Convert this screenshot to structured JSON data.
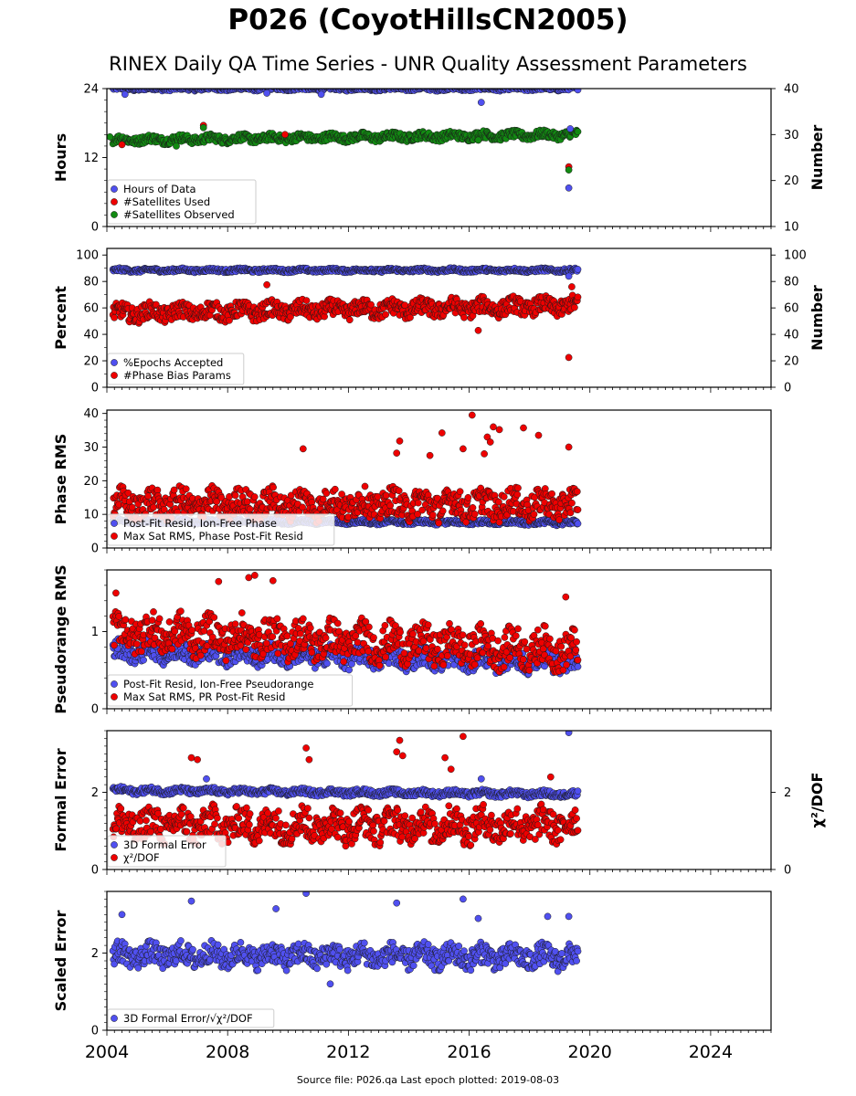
{
  "title": "P026 (CoyotHillsCN2005)",
  "subtitle": "RINEX Daily QA Time Series - UNR Quality Assessment Parameters",
  "footer": "Source file: P026.qa Last epoch plotted: 2019-08-03",
  "colors": {
    "blue": "#5050f0",
    "red": "#ee0000",
    "green": "#128a12",
    "dark_edge": "#1a1a1a"
  },
  "chart_data": [
    {
      "type": "scatter",
      "id": "hours",
      "ylabel": "Hours",
      "y2label": "Number",
      "xlim": [
        2004.0,
        2026.0
      ],
      "ylim": [
        0,
        24
      ],
      "y2lim": [
        10,
        40
      ],
      "yticks": [
        0,
        12,
        24
      ],
      "y2ticks": [
        10,
        20,
        30,
        40
      ],
      "legend_loc": "lower-left",
      "series": [
        {
          "name": "Hours of Data",
          "color": "blue",
          "axis": "left",
          "points": [
            [
              2004.6,
              23.0
            ],
            [
              2009.3,
              23.2
            ],
            [
              2011.1,
              23.0
            ],
            [
              2016.4,
              21.6
            ],
            [
              2019.3,
              6.7
            ],
            [
              2019.35,
              17.0
            ]
          ]
        },
        {
          "name": "#Satellites Used",
          "color": "red",
          "axis": "right",
          "points": [
            [
              2004.5,
              27.8
            ],
            [
              2007.2,
              32.0
            ],
            [
              2009.9,
              30.0
            ],
            [
              2016.3,
              28.8
            ],
            [
              2019.3,
              23.0
            ]
          ]
        },
        {
          "name": "#Satellites Observed",
          "color": "green",
          "axis": "right",
          "points": [
            [
              2007.2,
              31.5
            ],
            [
              2016.3,
              28.8
            ],
            [
              2019.3,
              22.3
            ],
            [
              2004.1,
              29.5
            ],
            [
              2006.3,
              27.5
            ]
          ]
        }
      ],
      "trend": [
        {
          "series": "Hours of Data",
          "x0": 2004.2,
          "x1": 2019.6,
          "y0": 24.0,
          "y1": 24.0,
          "spread": 0.6
        },
        {
          "series": "#Satellites Observed",
          "x0": 2004.2,
          "x1": 2019.6,
          "y0": 28.8,
          "y1": 30.0,
          "spread": 1.6
        }
      ]
    },
    {
      "type": "scatter",
      "id": "percent",
      "ylabel": "Percent",
      "y2label": "Number",
      "xlim": [
        2004.0,
        2026.0
      ],
      "ylim": [
        0,
        105
      ],
      "y2lim": [
        0,
        105
      ],
      "yticks": [
        0,
        20,
        40,
        60,
        80,
        100
      ],
      "y2ticks": [
        0,
        20,
        40,
        60,
        80,
        100
      ],
      "legend_loc": "lower-left",
      "series": [
        {
          "name": "%Epochs Accepted",
          "color": "blue",
          "axis": "left",
          "points": [
            [
              2019.3,
              84.0
            ]
          ]
        },
        {
          "name": "#Phase Bias Params",
          "color": "red",
          "axis": "left",
          "points": [
            [
              2019.3,
              22.5
            ],
            [
              2016.3,
              43.0
            ],
            [
              2019.4,
              76.0
            ],
            [
              2009.3,
              77.5
            ]
          ]
        }
      ],
      "trend": [
        {
          "series": "%Epochs Accepted",
          "x0": 2004.2,
          "x1": 2019.6,
          "y0": 88.5,
          "y1": 88.5,
          "spread": 2.5
        },
        {
          "series": "#Phase Bias Params",
          "x0": 2004.2,
          "x1": 2019.6,
          "y0": 56.0,
          "y1": 61.5,
          "spread": 12.0
        }
      ]
    },
    {
      "type": "scatter",
      "id": "phase_rms",
      "ylabel": "Phase RMS",
      "xlim": [
        2004.0,
        2026.0
      ],
      "ylim": [
        0,
        41
      ],
      "yticks": [
        0,
        10,
        20,
        30,
        40
      ],
      "legend_loc": "lower-left",
      "series": [
        {
          "name": "Post-Fit Resid, Ion-Free Phase",
          "color": "blue",
          "axis": "left",
          "points": []
        },
        {
          "name": "Max Sat RMS, Phase Post-Fit Resid",
          "color": "red",
          "axis": "left",
          "points": [
            [
              2016.1,
              39.5
            ],
            [
              2016.8,
              36.0
            ],
            [
              2017.0,
              35.2
            ],
            [
              2017.8,
              35.7
            ],
            [
              2015.1,
              34.2
            ],
            [
              2018.3,
              33.5
            ],
            [
              2016.6,
              33.0
            ],
            [
              2016.7,
              31.5
            ],
            [
              2013.7,
              31.8
            ],
            [
              2019.3,
              30.0
            ],
            [
              2010.5,
              29.5
            ],
            [
              2015.8,
              29.5
            ],
            [
              2013.6,
              28.2
            ],
            [
              2014.7,
              27.5
            ],
            [
              2016.5,
              28.0
            ]
          ]
        }
      ],
      "trend": [
        {
          "series": "Post-Fit Resid, Ion-Free Phase",
          "x0": 2004.2,
          "x1": 2019.6,
          "y0": 8.0,
          "y1": 7.5,
          "spread": 1.2
        },
        {
          "series": "Max Sat RMS, Phase Post-Fit Resid",
          "x0": 2004.2,
          "x1": 2019.6,
          "y0": 13.0,
          "y1": 13.0,
          "spread": 8.0
        }
      ]
    },
    {
      "type": "scatter",
      "id": "pseudorange_rms",
      "ylabel": "Pseudorange RMS",
      "xlim": [
        2004.0,
        2026.0
      ],
      "ylim": [
        0,
        1.8
      ],
      "yticks": [
        0,
        1
      ],
      "legend_loc": "lower-left",
      "series": [
        {
          "name": "Post-Fit Resid, Ion-Free Pseudorange",
          "color": "blue",
          "axis": "left",
          "points": []
        },
        {
          "name": "Max Sat RMS, PR Post-Fit Resid",
          "color": "red",
          "axis": "left",
          "points": [
            [
              2008.9,
              1.73
            ],
            [
              2008.7,
              1.7
            ],
            [
              2007.7,
              1.65
            ],
            [
              2009.5,
              1.66
            ],
            [
              2004.3,
              1.5
            ],
            [
              2019.2,
              1.45
            ]
          ]
        }
      ],
      "trend": [
        {
          "series": "Post-Fit Resid, Ion-Free Pseudorange",
          "x0": 2004.2,
          "x1": 2019.6,
          "y0": 0.75,
          "y1": 0.6,
          "spread": 0.25
        },
        {
          "series": "Max Sat RMS, PR Post-Fit Resid",
          "x0": 2004.2,
          "x1": 2019.6,
          "y0": 1.0,
          "y1": 0.75,
          "spread": 0.45
        }
      ]
    },
    {
      "type": "scatter",
      "id": "formal_error",
      "ylabel": "Formal Error",
      "y2label": "χ²/DOF",
      "xlim": [
        2004.0,
        2026.0
      ],
      "ylim": [
        0,
        3.6
      ],
      "y2lim": [
        0,
        3.6
      ],
      "yticks": [
        0,
        2
      ],
      "y2ticks": [
        0,
        2
      ],
      "legend_loc": "lower-left",
      "series": [
        {
          "name": "3D Formal Error",
          "color": "blue",
          "axis": "left",
          "points": [
            [
              2019.3,
              3.55
            ],
            [
              2016.4,
              2.35
            ],
            [
              2007.3,
              2.35
            ]
          ]
        },
        {
          "name": "χ²/DOF",
          "color": "red",
          "axis": "left",
          "points": [
            [
              2013.7,
              3.35
            ],
            [
              2015.8,
              3.45
            ],
            [
              2013.6,
              3.05
            ],
            [
              2010.6,
              3.15
            ],
            [
              2006.8,
              2.9
            ],
            [
              2007.0,
              2.85
            ],
            [
              2010.7,
              2.85
            ],
            [
              2013.8,
              2.95
            ],
            [
              2015.2,
              2.9
            ],
            [
              2015.4,
              2.6
            ],
            [
              2018.7,
              2.4
            ]
          ]
        }
      ],
      "trend": [
        {
          "series": "3D Formal Error",
          "x0": 2004.2,
          "x1": 2019.6,
          "y0": 2.05,
          "y1": 1.95,
          "spread": 0.15
        },
        {
          "series": "χ²/DOF",
          "x0": 2004.2,
          "x1": 2019.6,
          "y0": 1.15,
          "y1": 1.15,
          "spread": 0.8
        }
      ]
    },
    {
      "type": "scatter",
      "id": "scaled_error",
      "ylabel": "Scaled Error",
      "xlim": [
        2004.0,
        2026.0
      ],
      "ylim": [
        0,
        3.6
      ],
      "yticks": [
        0,
        2
      ],
      "legend_loc": "lower-left",
      "xticks": [
        2004,
        2008,
        2012,
        2016,
        2020,
        2024
      ],
      "series": [
        {
          "name": "3D Formal Error/√χ²/DOF",
          "color": "blue",
          "axis": "left",
          "points": [
            [
              2010.6,
              3.55
            ],
            [
              2015.8,
              3.4
            ],
            [
              2006.8,
              3.35
            ],
            [
              2009.6,
              3.15
            ],
            [
              2013.6,
              3.3
            ],
            [
              2019.3,
              2.95
            ],
            [
              2016.3,
              2.9
            ],
            [
              2018.6,
              2.95
            ],
            [
              2011.4,
              1.2
            ],
            [
              2004.5,
              3.0
            ]
          ]
        }
      ],
      "trend": [
        {
          "series": "3D Formal Error/√χ²/DOF",
          "x0": 2004.2,
          "x1": 2019.6,
          "y0": 1.95,
          "y1": 1.9,
          "spread": 0.55
        }
      ]
    }
  ]
}
